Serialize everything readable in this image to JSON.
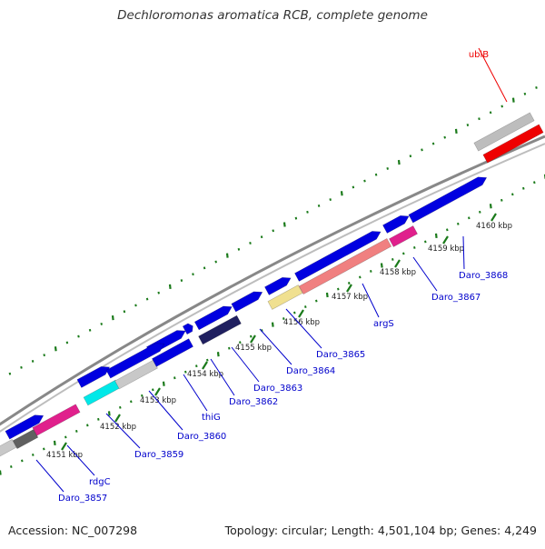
{
  "title": "Dechloromonas aromatica RCB, complete genome",
  "footer": {
    "accession": "Accession: NC_007298",
    "summary": "Topology: circular; Length: 4,501,104 bp; Genes: 4,249"
  },
  "colors": {
    "cds_forward": "#0000e0",
    "highlight": "#ee0000",
    "backbone": "#888888",
    "tick": "#1a7a1a",
    "label_link": "#0000cc"
  },
  "scale_labels": [
    "4151 kbp",
    "4152 kbp",
    "4153 kbp",
    "4154 kbp",
    "4155 kbp",
    "4156 kbp",
    "4157 kbp",
    "4158 kbp",
    "4159 kbp",
    "4160 kbp"
  ],
  "gene_labels": [
    {
      "text": "ubiB",
      "highlight": true
    },
    {
      "text": "Daro_3868"
    },
    {
      "text": "Daro_3867"
    },
    {
      "text": "argS"
    },
    {
      "text": "Daro_3865"
    },
    {
      "text": "Daro_3864"
    },
    {
      "text": "Daro_3863"
    },
    {
      "text": "Daro_3862"
    },
    {
      "text": "thiG"
    },
    {
      "text": "Daro_3860"
    },
    {
      "text": "Daro_3859"
    },
    {
      "text": "rdgC"
    },
    {
      "text": "Daro_3857"
    }
  ]
}
